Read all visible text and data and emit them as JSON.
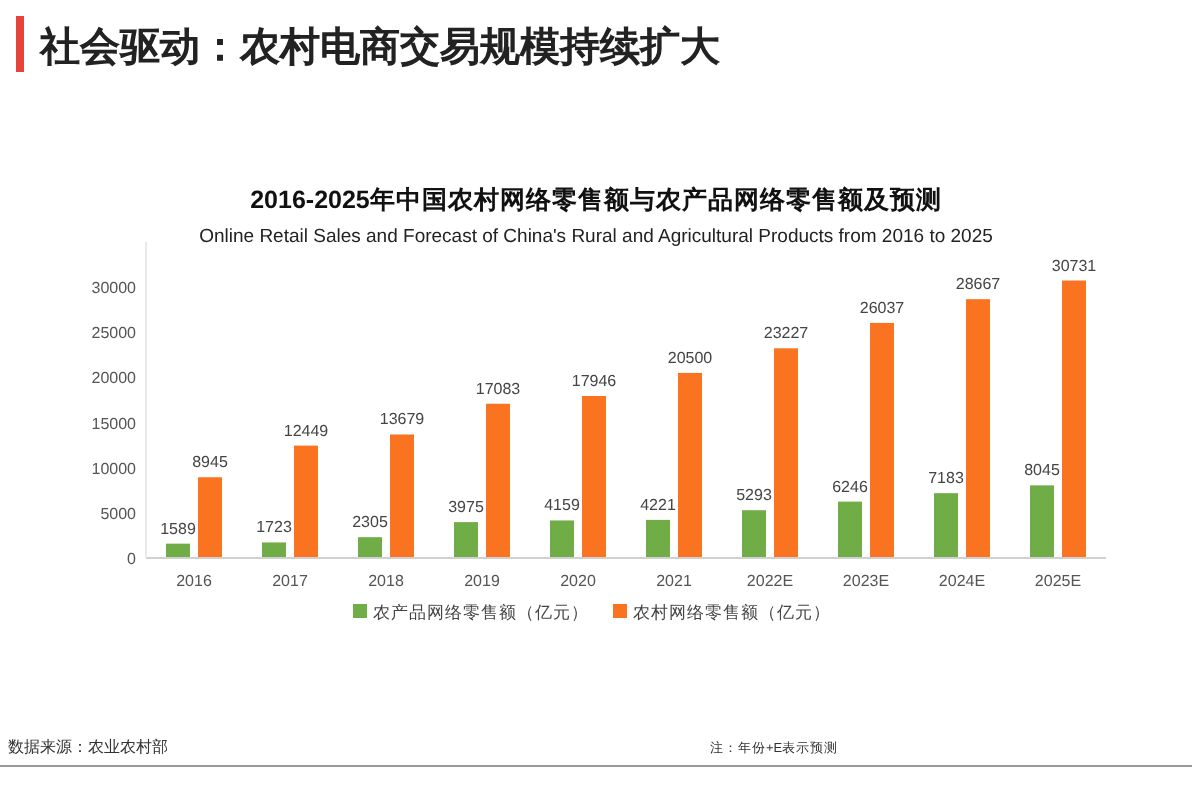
{
  "chart_data": {
    "type": "bar",
    "title": "2016-2025年中国农村网络零售额与农产品网络零售额及预测",
    "subtitle": "Online Retail Sales and Forecast of China's Rural and Agricultural Products from 2016 to 2025",
    "categories": [
      "2016",
      "2017",
      "2018",
      "2019",
      "2020",
      "2021",
      "2022E",
      "2023E",
      "2024E",
      "2025E"
    ],
    "series": [
      {
        "name": "农产品网络零售额（亿元）",
        "color": "#70ad47",
        "values": [
          1589,
          1723,
          2305,
          3975,
          4159,
          4221,
          5293,
          6246,
          7183,
          8045
        ]
      },
      {
        "name": "农村网络零售额（亿元）",
        "color": "#fa7320",
        "values": [
          8945,
          12449,
          13679,
          17083,
          17946,
          20500,
          23227,
          26037,
          28667,
          30731
        ]
      }
    ],
    "ylim": [
      0,
      35000
    ],
    "yticks": [
      0,
      5000,
      10000,
      15000,
      20000,
      25000,
      30000
    ],
    "data_labels": true,
    "grid": false,
    "legend": "bottom",
    "annotations": [
      "社会驱动：农村电商交易规模持续扩大",
      "数据来源：农业农村部",
      "注：年份+E表示预测"
    ]
  }
}
